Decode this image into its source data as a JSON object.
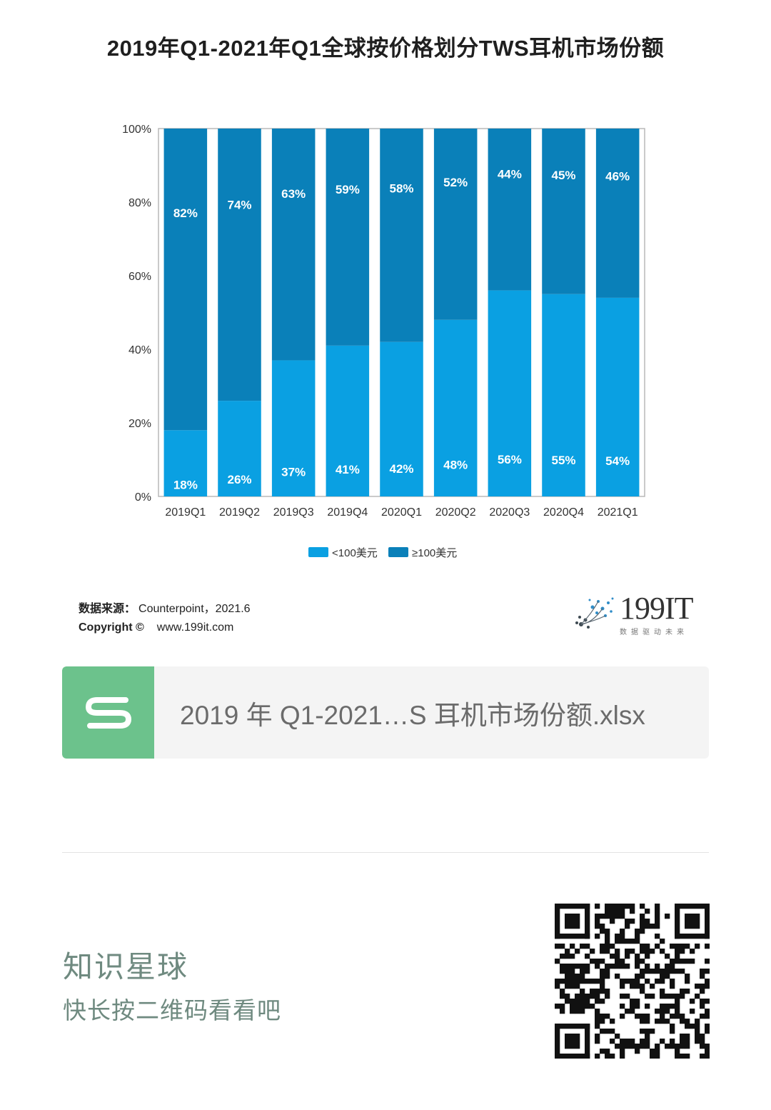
{
  "chart_data": {
    "type": "bar",
    "stacked": true,
    "title": "2019年Q1-2021年Q1全球按价格划分TWS耳机市场份额",
    "categories": [
      "2019Q1",
      "2019Q2",
      "2019Q3",
      "2019Q4",
      "2020Q1",
      "2020Q2",
      "2020Q3",
      "2020Q4",
      "2021Q1"
    ],
    "series": [
      {
        "name": "<100美元",
        "values": [
          18,
          26,
          37,
          41,
          42,
          48,
          56,
          55,
          54
        ],
        "labels": [
          "18%",
          "26%",
          "37%",
          "41%",
          "42%",
          "48%",
          "56%",
          "55%",
          "54%"
        ],
        "color": "#0aa0e2"
      },
      {
        "name": "≥100美元",
        "values": [
          82,
          74,
          63,
          59,
          58,
          52,
          44,
          45,
          46
        ],
        "labels": [
          "82%",
          "74%",
          "63%",
          "59%",
          "58%",
          "52%",
          "44%",
          "45%",
          "46%"
        ],
        "color": "#0a80b9"
      }
    ],
    "y_ticks": [
      "0%",
      "20%",
      "40%",
      "60%",
      "80%",
      "100%"
    ],
    "ylim": [
      0,
      100
    ],
    "legend_position": "bottom",
    "grid": false
  },
  "source": {
    "label": "数据来源：",
    "text": "Counterpoint，2021.6",
    "copyright_label": "Copyright ©",
    "website": "www.199it.com"
  },
  "logo": {
    "text": "199IT",
    "tagline": "数据驱动未来"
  },
  "file": {
    "name": "2019 年 Q1-2021…S 耳机市场份额.xlsx",
    "icon_letter": "S",
    "icon_color": "#6cc28c"
  },
  "footer": {
    "title": "知识星球",
    "subtitle": "快长按二维码看看吧"
  }
}
